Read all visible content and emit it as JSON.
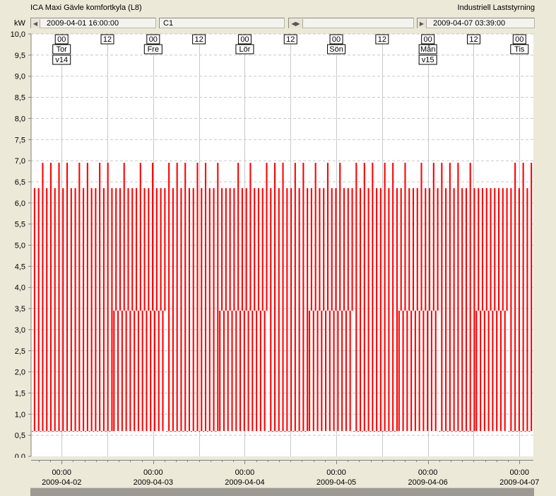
{
  "window": {
    "title": "ICA Maxi Gävle komfortkyla  (L8)",
    "brand": "Industriell Laststyrning"
  },
  "toolbar": {
    "unit": "kW",
    "start_time": "2009-04-01 16:00:00",
    "channel": "C1",
    "end_time": "2009-04-07 03:39:00",
    "icons": {
      "prev": "skip-to-start-icon",
      "scroll": "scroll-both-ways-icon",
      "next": "skip-to-end-icon"
    }
  },
  "plot": {
    "series_color": "#ff0000",
    "background": "#ffffff",
    "grid_color": "#c8c8c8"
  },
  "hour_markers": [
    "00",
    "12",
    "00",
    "12",
    "00",
    "12",
    "00",
    "12",
    "00",
    "12",
    "00"
  ],
  "day_markers": [
    "Tor",
    "Fre",
    "Lör",
    "Sön",
    "Mån",
    "Tis"
  ],
  "week_markers": [
    "v14",
    "v15"
  ],
  "x_axis": [
    {
      "time": "00:00",
      "date": "2009-04-02"
    },
    {
      "time": "00:00",
      "date": "2009-04-03"
    },
    {
      "time": "00:00",
      "date": "2009-04-04"
    },
    {
      "time": "00:00",
      "date": "2009-04-05"
    },
    {
      "time": "00:00",
      "date": "2009-04-06"
    },
    {
      "time": "00:00",
      "date": "2009-04-07"
    }
  ],
  "chart_data": {
    "type": "line",
    "title": "",
    "xlabel": "",
    "ylabel": "kW",
    "ylim": [
      0,
      10
    ],
    "y_ticks": [
      "0,0",
      "0,5",
      "1,0",
      "1,5",
      "2,0",
      "2,5",
      "3,0",
      "3,5",
      "4,0",
      "4,5",
      "5,0",
      "5,5",
      "6,0",
      "6,5",
      "7,0",
      "7,5",
      "8,0",
      "8,5",
      "9,0",
      "9,5",
      "10,0"
    ],
    "x_start": "2009-04-01 16:00:00",
    "x_end": "2009-04-07 03:39:00",
    "levels_kw": {
      "min": 0.6,
      "low": 3.45,
      "mid": 6.35,
      "peak": 6.95
    },
    "series": [
      {
        "values_kw": [
          0.6,
          6.35,
          0.6,
          6.35,
          0.6,
          6.95,
          0.6,
          6.35,
          0.6,
          6.95,
          0.6,
          6.35,
          0.6,
          6.95,
          0.6,
          6.35,
          0.6,
          6.95,
          0.6,
          6.35,
          0.6,
          6.35,
          0.6,
          6.95,
          0.6,
          6.35,
          0.6,
          6.95,
          0.6,
          6.35,
          0.6,
          6.35,
          0.6,
          6.95,
          0.6,
          6.35,
          0.6,
          6.95,
          0.6,
          6.35,
          3.45,
          6.35,
          3.45,
          6.35,
          3.45,
          6.95,
          3.45,
          6.35,
          3.45,
          6.35,
          3.45,
          6.35,
          3.45,
          6.95,
          3.45,
          6.35,
          3.45,
          6.35,
          3.45,
          6.95,
          3.45,
          6.35,
          3.45,
          6.35,
          3.45,
          6.35,
          0.6,
          6.95,
          0.6,
          6.35,
          0.6,
          6.95,
          0.6,
          6.35,
          0.6,
          6.95,
          0.6,
          6.35,
          0.6,
          6.35,
          0.6,
          6.95,
          0.6,
          6.35,
          0.6,
          6.95,
          0.6,
          6.35,
          0.6,
          6.35,
          0.6,
          6.95,
          3.45,
          6.35,
          3.45,
          6.35,
          3.45,
          6.35,
          3.45,
          6.35,
          3.45,
          6.95,
          3.45,
          6.35,
          3.45,
          6.35,
          3.45,
          6.95,
          3.45,
          6.35,
          3.45,
          6.35,
          3.45,
          6.35,
          3.45,
          6.95,
          0.6,
          6.35,
          0.6,
          6.95,
          0.6,
          6.35,
          0.6,
          6.95,
          0.6,
          6.35,
          0.6,
          6.35,
          0.6,
          6.95,
          0.6,
          6.35,
          0.6,
          6.95,
          0.6,
          6.35,
          3.45,
          6.35,
          3.45,
          6.95,
          3.45,
          6.35,
          3.45,
          6.35,
          3.45,
          6.95,
          3.45,
          6.35,
          3.45,
          6.35,
          3.45,
          6.95,
          3.45,
          6.35,
          3.45,
          6.35,
          3.45,
          6.35,
          0.6,
          6.95,
          0.6,
          6.35,
          0.6,
          6.95,
          0.6,
          6.35,
          0.6,
          6.95,
          0.6,
          6.35,
          0.6,
          6.35,
          0.6,
          6.95,
          0.6,
          6.35,
          0.6,
          6.95,
          0.6,
          6.35,
          3.45,
          6.35,
          3.45,
          6.95,
          3.45,
          6.35,
          3.45,
          6.35,
          3.45,
          6.35,
          3.45,
          6.95,
          3.45,
          6.35,
          3.45,
          6.35,
          3.45,
          6.95,
          3.45,
          6.35,
          0.6,
          6.95,
          0.6,
          6.35,
          0.6,
          6.95,
          0.6,
          6.35,
          0.6,
          6.95,
          0.6,
          6.35,
          0.6,
          6.35,
          0.6,
          6.95,
          0.6,
          6.35,
          3.45,
          6.35,
          3.45,
          6.35,
          3.45,
          6.35,
          3.45,
          6.35,
          3.45,
          6.35,
          3.45,
          6.35,
          3.45,
          6.35,
          3.45,
          6.35,
          0.6,
          6.35,
          0.6,
          6.95,
          0.6,
          6.35,
          0.6,
          6.95,
          0.6,
          6.35,
          0.6,
          6.95
        ]
      }
    ]
  }
}
